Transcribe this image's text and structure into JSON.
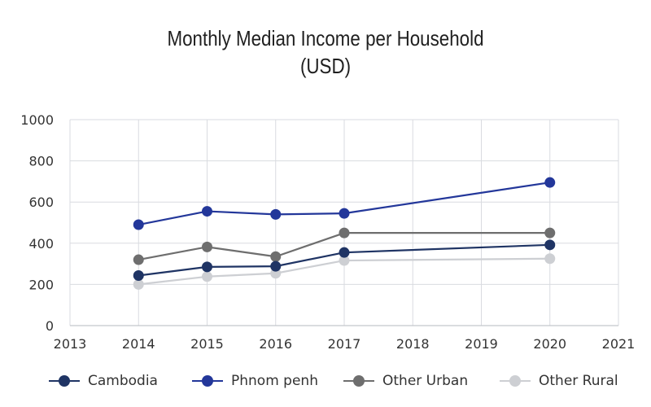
{
  "title_lines": [
    "Monthly Median Income per Household",
    "(USD)"
  ],
  "chart_data": {
    "type": "line",
    "title": "Monthly Median Income per Household (USD)",
    "xlabel": "",
    "ylabel": "",
    "xlim": [
      2013,
      2021
    ],
    "ylim": [
      0,
      1000
    ],
    "x_ticks": [
      "2013",
      "2014",
      "2015",
      "2016",
      "2017",
      "2018",
      "2019",
      "2020",
      "2021"
    ],
    "y_ticks": [
      "0",
      "200",
      "400",
      "600",
      "800",
      "1000"
    ],
    "x": [
      2014,
      2015,
      2016,
      2017,
      2020
    ],
    "grid": true,
    "legend_position": "bottom",
    "series": [
      {
        "name": "Cambodia",
        "color": "#1f3464",
        "values": [
          243,
          285,
          288,
          355,
          392
        ]
      },
      {
        "name": "Phnom penh",
        "color": "#23379a",
        "values": [
          490,
          555,
          540,
          545,
          695
        ]
      },
      {
        "name": "Other Urban",
        "color": "#6e6e6e",
        "values": [
          320,
          382,
          335,
          450,
          450
        ]
      },
      {
        "name": "Other Rural",
        "color": "#cdcfd3",
        "values": [
          200,
          238,
          254,
          316,
          325
        ]
      }
    ]
  }
}
